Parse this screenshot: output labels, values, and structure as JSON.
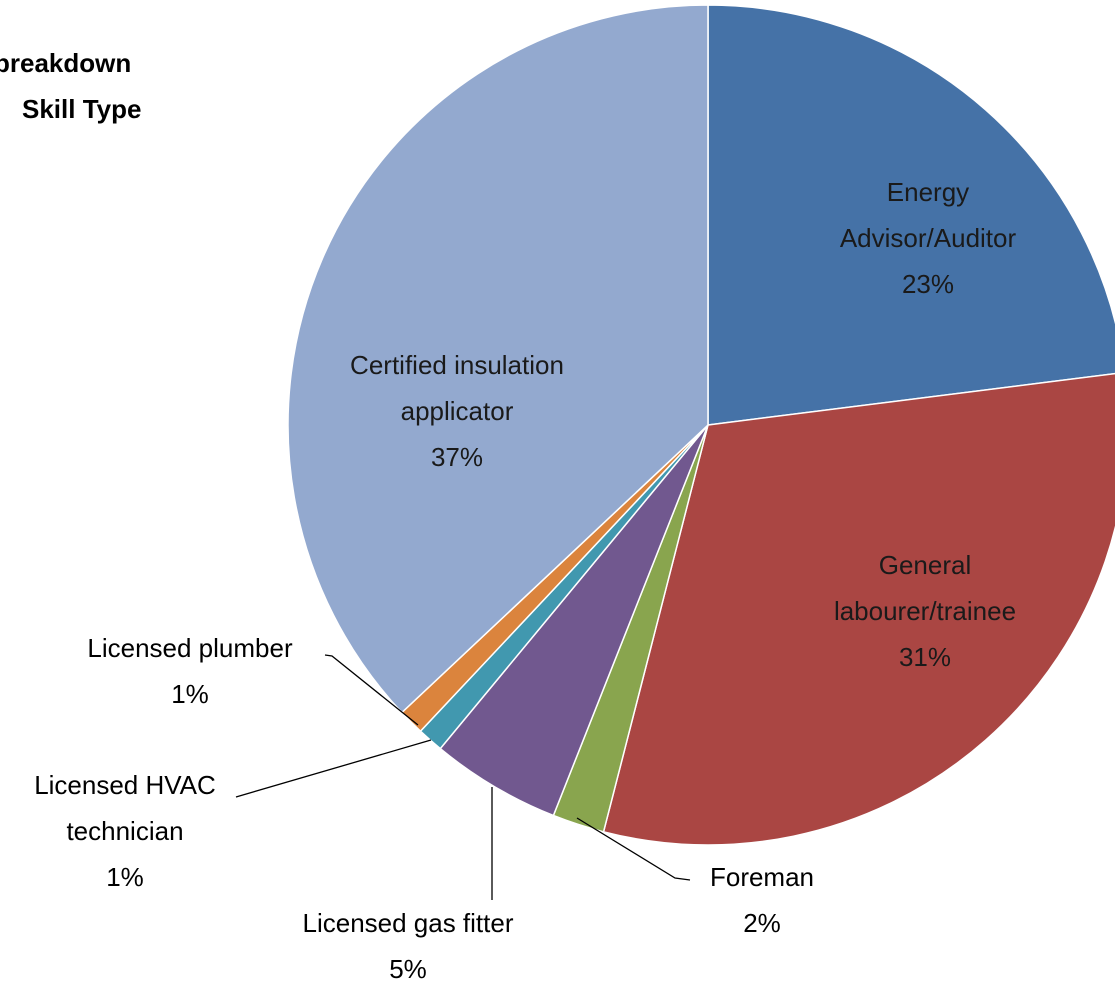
{
  "chart_data": {
    "type": "pie",
    "title": [
      "breakdown",
      "Skill Type"
    ],
    "categories": [
      "Energy Advisor/Auditor",
      "General labourer/trainee",
      "Foreman",
      "Licensed gas fitter",
      "Licensed HVAC technician",
      "Licensed plumber",
      "Certified insulation applicator"
    ],
    "values": [
      23,
      31,
      2,
      5,
      1,
      1,
      37
    ],
    "value_labels": [
      "23%",
      "31%",
      "2%",
      "5%",
      "1%",
      "1%",
      "37%"
    ],
    "colors": [
      "#4572a7",
      "#aa4643",
      "#89a54e",
      "#71588f",
      "#4198af",
      "#db843d",
      "#93a9cf"
    ]
  }
}
